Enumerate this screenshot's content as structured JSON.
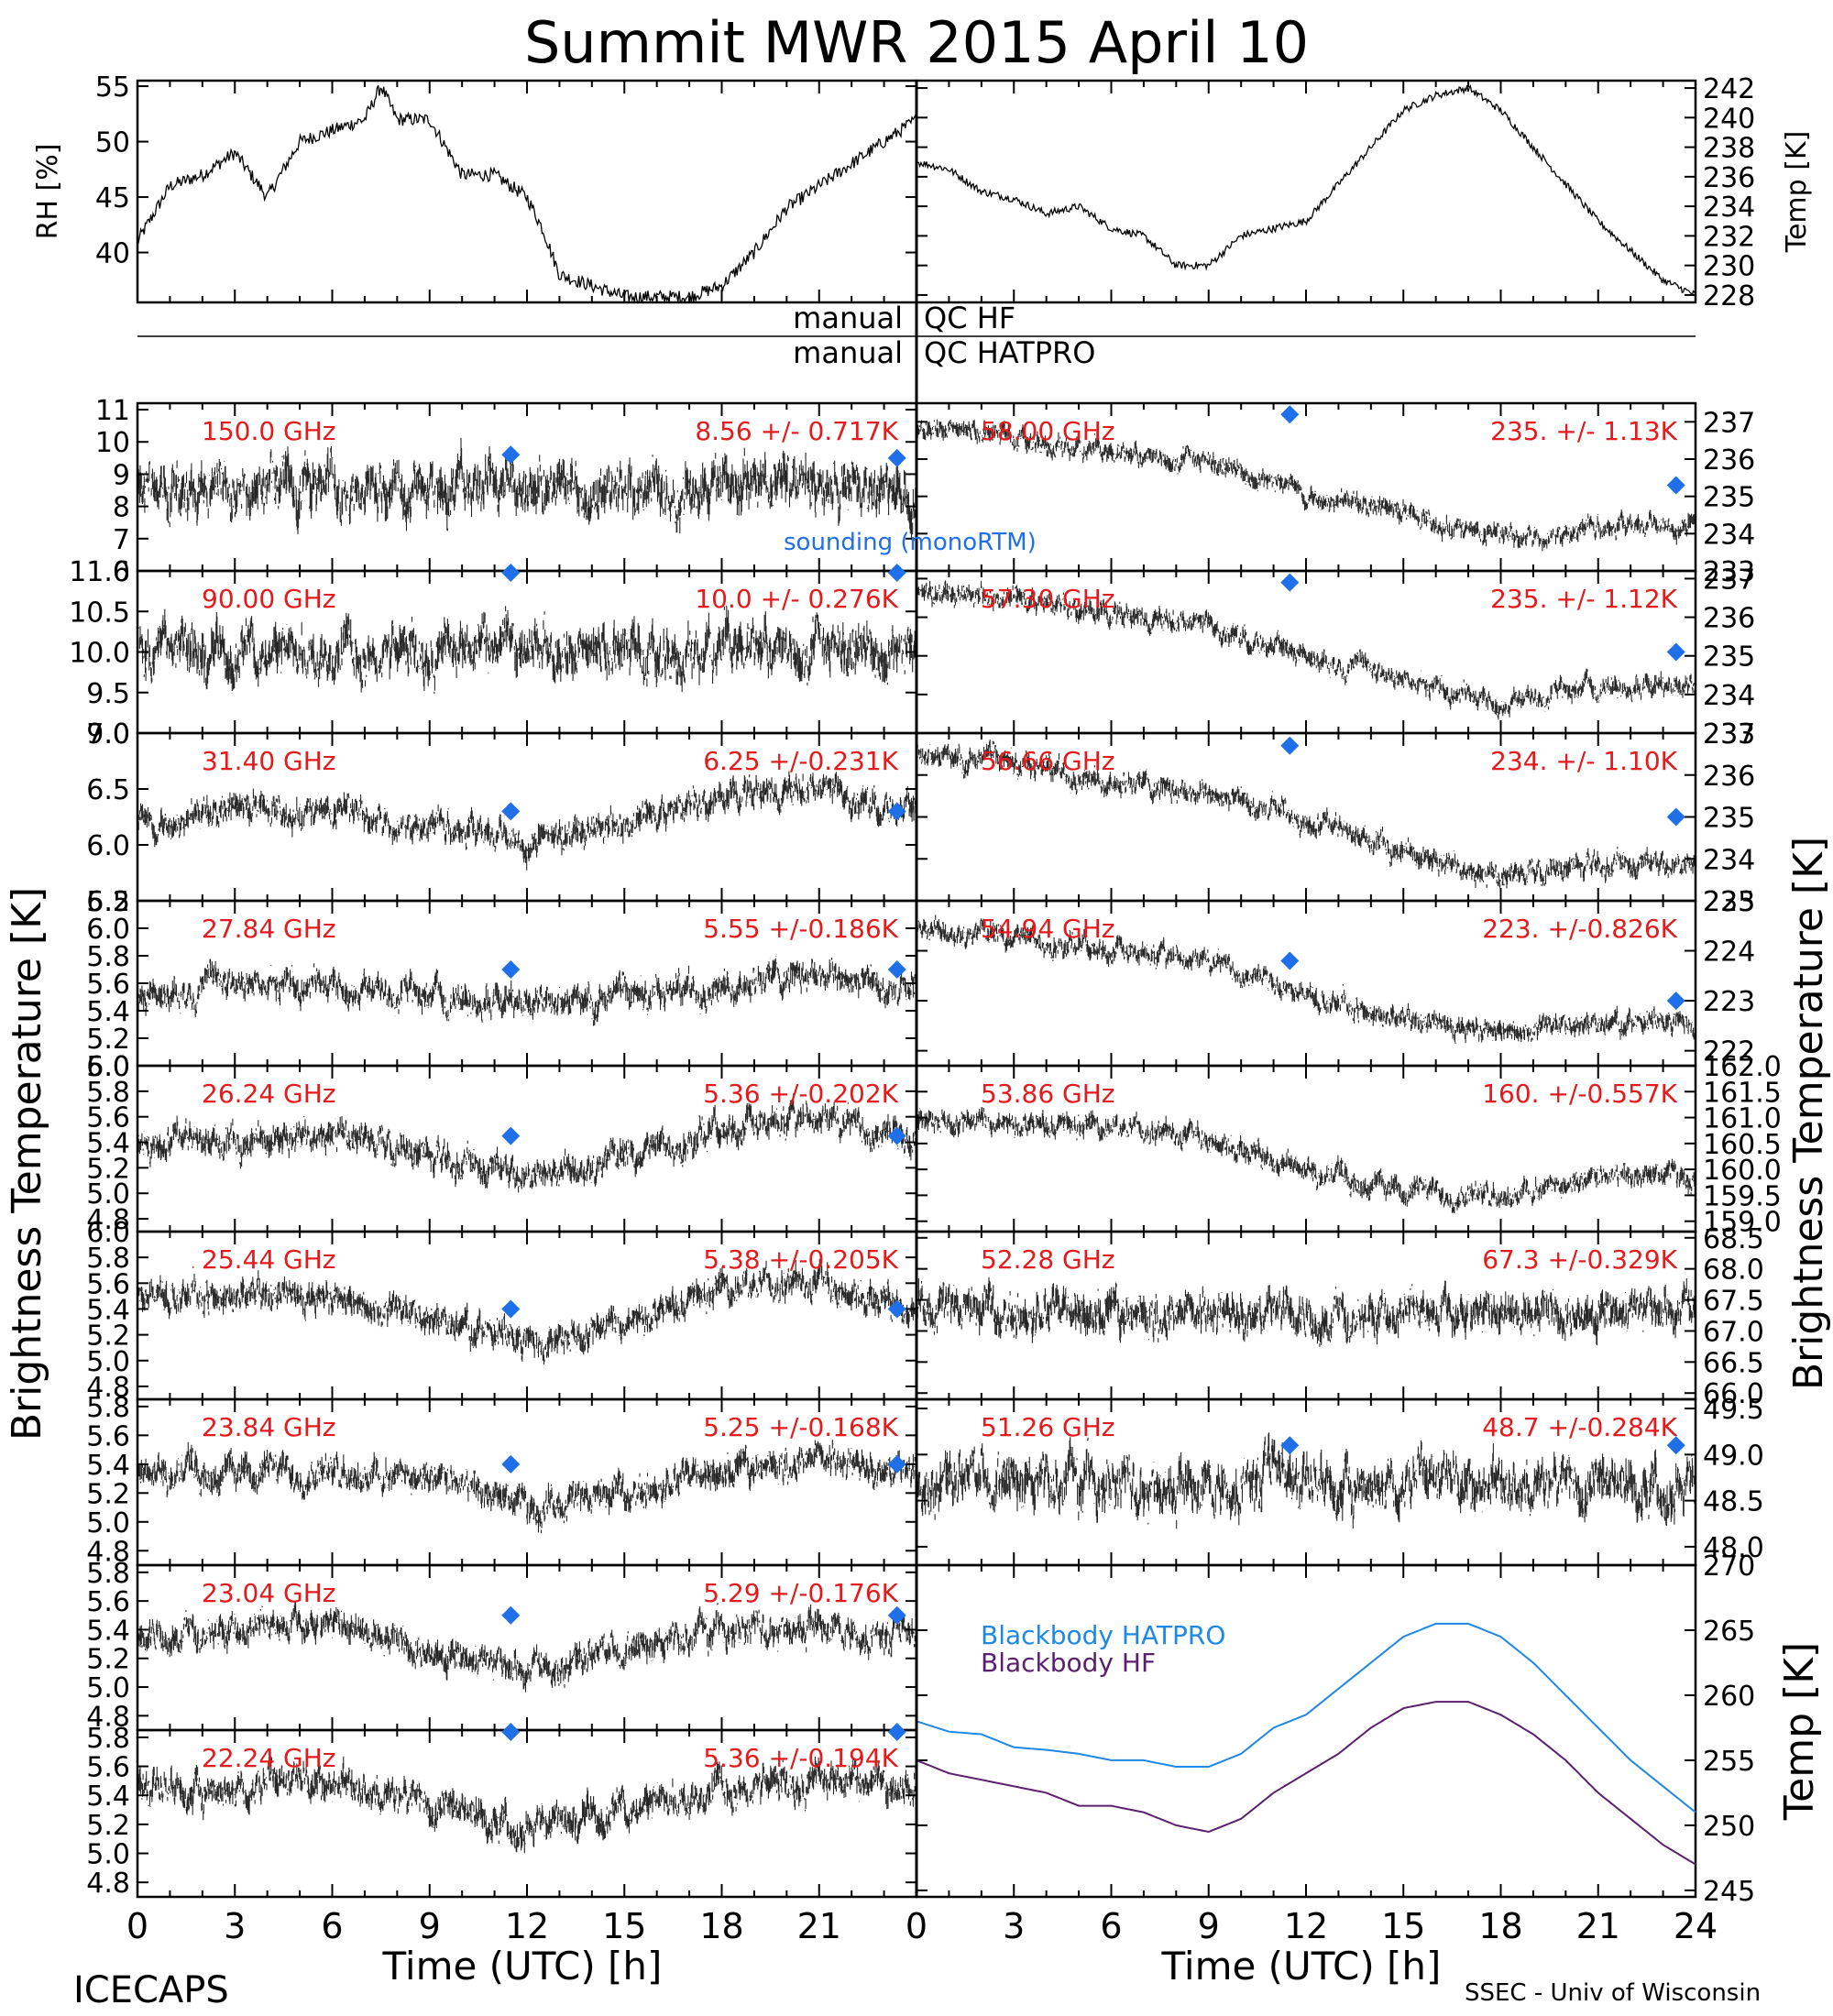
{
  "title": "Summit MWR 2015 April 10",
  "footer": {
    "left": "ICECAPS",
    "right": "SSEC - Univ of Wisconsin"
  },
  "ylabel_left": "Brightness Temperature [K]",
  "ylabel_right": "Brightness Temperature [K]",
  "xlabel": "Time (UTC) [h]",
  "x_ticks_left": [
    "0",
    "3",
    "6",
    "9",
    "12",
    "15",
    "18",
    "21"
  ],
  "x_ticks_right": [
    "0",
    "3",
    "6",
    "9",
    "12",
    "15",
    "18",
    "21",
    "24"
  ],
  "qc": {
    "row1_left": "manual",
    "row1_right": "QC HF",
    "row2_left": "manual",
    "row2_right": "QC HATPRO"
  },
  "colors": {
    "trace": "#000000",
    "label": "#e41a1c",
    "sounding": "#1e6fe8",
    "hatpro": "#1e88e5",
    "hf": "#5b1f6e"
  },
  "sounding_label": "sounding (monoRTM)",
  "chart_data": [
    {
      "type": "line",
      "panel": "rh",
      "ylabel": "RH [%]",
      "ylim": [
        35.5,
        55.5
      ],
      "yticks": [
        "40",
        "45",
        "50",
        "55"
      ],
      "x": [
        0,
        1,
        2,
        3,
        4,
        5,
        6,
        7,
        7.5,
        8,
        9,
        10,
        11,
        12,
        12.5,
        13,
        14,
        15,
        16,
        17,
        18,
        19,
        20,
        21,
        22,
        23,
        24
      ],
      "values": [
        41,
        46,
        47,
        49,
        45,
        50,
        51,
        52,
        55,
        52,
        52,
        47,
        47,
        45,
        42,
        38,
        37,
        36,
        36,
        36,
        37,
        40,
        44,
        46,
        48,
        50,
        52
      ]
    },
    {
      "type": "line",
      "panel": "temp",
      "ylabel": "Temp [K]",
      "ylim": [
        227.5,
        242.5
      ],
      "yticks": [
        "228",
        "230",
        "232",
        "234",
        "236",
        "238",
        "240",
        "242"
      ],
      "x": [
        0,
        1,
        2,
        3,
        4,
        5,
        6,
        7,
        8,
        9,
        10,
        11,
        12,
        13,
        14,
        15,
        16,
        17,
        18,
        19,
        20,
        21,
        22,
        23,
        24
      ],
      "values": [
        237,
        236.5,
        235,
        234.5,
        233.5,
        234,
        232.5,
        232,
        230,
        230,
        232,
        232.5,
        233,
        235.5,
        238,
        240.5,
        241.5,
        242,
        240.5,
        238,
        235.5,
        233,
        231,
        229,
        228
      ]
    },
    {
      "type": "scatter",
      "panel": "150.0",
      "channel": "150.0 GHz",
      "stat": "8.56 +/- 0.717K",
      "ylim": [
        6,
        11.2
      ],
      "yticks": [
        "6",
        "7",
        "8",
        "9",
        "10",
        "11"
      ],
      "x": [
        0,
        3,
        6,
        9,
        12,
        15,
        18,
        21,
        24
      ],
      "values": [
        8.6,
        8.6,
        8.5,
        8.6,
        8.5,
        8.5,
        8.6,
        8.6,
        8.5
      ],
      "noise": 0.72,
      "sounding": [
        [
          11.5,
          9.6
        ],
        [
          23.4,
          9.5
        ]
      ]
    },
    {
      "type": "scatter",
      "panel": "90.00",
      "channel": "90.00 GHz",
      "stat": "10.0 +/- 0.276K",
      "ylim": [
        9,
        11
      ],
      "yticks": [
        "9.0",
        "9.5",
        "10.0",
        "10.5",
        "11.0"
      ],
      "x": [
        0,
        3,
        6,
        9,
        12,
        15,
        18,
        21,
        24
      ],
      "values": [
        10,
        10,
        10,
        10,
        10,
        10,
        10,
        10,
        10
      ],
      "noise": 0.28,
      "sounding": [
        [
          11.5,
          11
        ],
        [
          23.4,
          11
        ]
      ]
    },
    {
      "type": "scatter",
      "panel": "31.40",
      "channel": "31.40 GHz",
      "stat": "6.25 +/-0.231K",
      "ylim": [
        5.5,
        7
      ],
      "yticks": [
        "5.5",
        "6.0",
        "6.5",
        "7.0"
      ],
      "x": [
        0,
        3,
        6,
        9,
        12,
        15,
        18,
        21,
        24
      ],
      "values": [
        6.2,
        6.3,
        6.3,
        6.2,
        6.05,
        6.2,
        6.4,
        6.5,
        6.3
      ],
      "noise": 0.12,
      "sounding": [
        [
          11.5,
          6.3
        ],
        [
          23.4,
          6.3
        ]
      ]
    },
    {
      "type": "scatter",
      "panel": "27.84",
      "channel": "27.84 GHz",
      "stat": "5.55 +/-0.186K",
      "ylim": [
        5.0,
        6.2
      ],
      "yticks": [
        "5.0",
        "5.2",
        "5.4",
        "5.6",
        "5.8",
        "6.0",
        "6.2"
      ],
      "x": [
        0,
        3,
        6,
        9,
        12,
        15,
        18,
        21,
        24
      ],
      "values": [
        5.5,
        5.6,
        5.6,
        5.5,
        5.45,
        5.5,
        5.6,
        5.7,
        5.5
      ],
      "noise": 0.1,
      "sounding": [
        [
          11.5,
          5.7
        ],
        [
          23.4,
          5.7
        ]
      ]
    },
    {
      "type": "scatter",
      "panel": "26.24",
      "channel": "26.24 GHz",
      "stat": "5.36 +/-0.202K",
      "ylim": [
        4.7,
        6
      ],
      "yticks": [
        "4.8",
        "5.0",
        "5.2",
        "5.4",
        "5.6",
        "5.8",
        "6.0"
      ],
      "x": [
        0,
        3,
        6,
        9,
        12,
        15,
        18,
        21,
        24
      ],
      "values": [
        5.4,
        5.4,
        5.5,
        5.3,
        5.15,
        5.3,
        5.5,
        5.6,
        5.4
      ],
      "noise": 0.11,
      "sounding": [
        [
          11.5,
          5.45
        ],
        [
          23.4,
          5.45
        ]
      ]
    },
    {
      "type": "scatter",
      "panel": "25.44",
      "channel": "25.44 GHz",
      "stat": "5.38 +/-0.205K",
      "ylim": [
        4.7,
        6
      ],
      "yticks": [
        "4.8",
        "5.0",
        "5.2",
        "5.4",
        "5.6",
        "5.8",
        "6.0"
      ],
      "x": [
        0,
        3,
        6,
        9,
        12,
        15,
        18,
        21,
        24
      ],
      "values": [
        5.5,
        5.5,
        5.5,
        5.3,
        5.15,
        5.3,
        5.55,
        5.6,
        5.4
      ],
      "noise": 0.11,
      "sounding": [
        [
          11.5,
          5.4
        ],
        [
          23.4,
          5.4
        ]
      ]
    },
    {
      "type": "scatter",
      "panel": "23.84",
      "channel": "23.84 GHz",
      "stat": "5.25 +/-0.168K",
      "ylim": [
        4.7,
        5.85
      ],
      "yticks": [
        "4.8",
        "5.0",
        "5.2",
        "5.4",
        "5.6",
        "5.8"
      ],
      "x": [
        0,
        3,
        6,
        9,
        12,
        15,
        18,
        21,
        24
      ],
      "values": [
        5.35,
        5.35,
        5.35,
        5.3,
        5.1,
        5.2,
        5.35,
        5.45,
        5.3
      ],
      "noise": 0.1,
      "sounding": [
        [
          11.5,
          5.4
        ],
        [
          23.4,
          5.4
        ]
      ]
    },
    {
      "type": "scatter",
      "panel": "23.04",
      "channel": "23.04 GHz",
      "stat": "5.29 +/-0.176K",
      "ylim": [
        4.7,
        5.85
      ],
      "yticks": [
        "4.8",
        "5.0",
        "5.2",
        "5.4",
        "5.6",
        "5.8"
      ],
      "x": [
        0,
        3,
        6,
        9,
        12,
        15,
        18,
        21,
        24
      ],
      "values": [
        5.35,
        5.4,
        5.45,
        5.25,
        5.1,
        5.25,
        5.4,
        5.45,
        5.3
      ],
      "noise": 0.1,
      "sounding": [
        [
          11.5,
          5.5
        ],
        [
          23.4,
          5.5
        ]
      ]
    },
    {
      "type": "scatter",
      "panel": "22.24",
      "channel": "22.24 GHz",
      "stat": "5.36 +/-0.194K",
      "ylim": [
        4.7,
        5.85
      ],
      "yticks": [
        "4.8",
        "5.0",
        "5.2",
        "5.4",
        "5.6",
        "5.8"
      ],
      "x": [
        0,
        3,
        6,
        9,
        12,
        15,
        18,
        21,
        24
      ],
      "values": [
        5.45,
        5.45,
        5.5,
        5.35,
        5.2,
        5.3,
        5.45,
        5.5,
        5.4
      ],
      "noise": 0.11,
      "sounding": [
        [
          11.5,
          5.85
        ],
        [
          23.4,
          5.85
        ]
      ]
    },
    {
      "type": "scatter",
      "panel": "58.00",
      "channel": "58.00 GHz",
      "stat": "235. +/- 1.13K",
      "ylim": [
        233,
        237.5
      ],
      "yticks": [
        "233",
        "234",
        "235",
        "236",
        "237"
      ],
      "x": [
        0,
        3,
        6,
        9,
        12,
        15,
        18,
        21,
        24
      ],
      "values": [
        236.9,
        236.6,
        236.1,
        235.9,
        235.1,
        234.5,
        233.9,
        234.2,
        234.3
      ],
      "noise": 0.25,
      "sounding": [
        [
          11.5,
          237.2
        ],
        [
          23.4,
          235.3
        ]
      ]
    },
    {
      "type": "scatter",
      "panel": "57.30",
      "channel": "57.30 GHz",
      "stat": "235. +/- 1.12K",
      "ylim": [
        233,
        237.2
      ],
      "yticks": [
        "233",
        "234",
        "235",
        "236",
        "237"
      ],
      "x": [
        0,
        3,
        6,
        9,
        12,
        15,
        18,
        21,
        24
      ],
      "values": [
        236.7,
        236.5,
        236,
        235.8,
        235,
        234.4,
        233.8,
        234.2,
        234.2
      ],
      "noise": 0.25,
      "sounding": [
        [
          11.5,
          236.9
        ],
        [
          23.4,
          235.1
        ]
      ]
    },
    {
      "type": "scatter",
      "panel": "56.66",
      "channel": "56.66 GHz",
      "stat": "234. +/- 1.10K",
      "ylim": [
        233,
        237
      ],
      "yticks": [
        "233",
        "234",
        "235",
        "236",
        "237"
      ],
      "x": [
        0,
        3,
        6,
        9,
        12,
        15,
        18,
        21,
        24
      ],
      "values": [
        236.5,
        236.3,
        235.9,
        235.6,
        234.9,
        234.2,
        233.6,
        233.9,
        233.9
      ],
      "noise": 0.25,
      "sounding": [
        [
          11.5,
          236.7
        ],
        [
          23.4,
          235
        ]
      ]
    },
    {
      "type": "scatter",
      "panel": "54.94",
      "channel": "54.94 GHz",
      "stat": "223. +/-0.826K",
      "ylim": [
        221.7,
        225
      ],
      "yticks": [
        "222",
        "223",
        "224",
        "225"
      ],
      "x": [
        0,
        3,
        6,
        9,
        12,
        15,
        18,
        21,
        24
      ],
      "values": [
        224.5,
        224.3,
        224,
        223.8,
        223.1,
        222.6,
        222.4,
        222.5,
        222.6
      ],
      "noise": 0.2,
      "sounding": [
        [
          11.5,
          223.8
        ],
        [
          23.4,
          223
        ]
      ]
    },
    {
      "type": "scatter",
      "panel": "53.86",
      "channel": "53.86 GHz",
      "stat": "160. +/-0.557K",
      "ylim": [
        158.8,
        162
      ],
      "yticks": [
        "159.0",
        "159.5",
        "160.0",
        "160.5",
        "161.0",
        "161.5",
        "162.0"
      ],
      "x": [
        0,
        3,
        6,
        9,
        12,
        15,
        18,
        21,
        24
      ],
      "values": [
        161,
        160.9,
        160.8,
        160.6,
        160,
        159.6,
        159.5,
        159.8,
        159.9
      ],
      "noise": 0.2,
      "sounding": []
    },
    {
      "type": "scatter",
      "panel": "52.28",
      "channel": "52.28 GHz",
      "stat": "67.3 +/-0.329K",
      "ylim": [
        65.9,
        68.6
      ],
      "yticks": [
        "66.0",
        "66.5",
        "67.0",
        "67.5",
        "68.0",
        "68.5"
      ],
      "x": [
        0,
        3,
        6,
        9,
        12,
        15,
        18,
        21,
        24
      ],
      "values": [
        67.4,
        67.3,
        67.3,
        67.3,
        67.2,
        67.3,
        67.3,
        67.3,
        67.3
      ],
      "noise": 0.3,
      "sounding": []
    },
    {
      "type": "scatter",
      "panel": "51.26",
      "channel": "51.26 GHz",
      "stat": "48.7 +/-0.284K",
      "ylim": [
        47.8,
        49.6
      ],
      "yticks": [
        "48.0",
        "48.5",
        "49.0",
        "49.5"
      ],
      "x": [
        0,
        3,
        6,
        9,
        12,
        15,
        18,
        21,
        24
      ],
      "values": [
        48.7,
        48.7,
        48.7,
        48.7,
        48.7,
        48.7,
        48.7,
        48.7,
        48.7
      ],
      "noise": 0.25,
      "sounding": [
        [
          11.5,
          49.1
        ],
        [
          23.4,
          49.1
        ]
      ]
    },
    {
      "type": "line",
      "panel": "blackbody",
      "ylabel": "Temp [K]",
      "ylim": [
        244.5,
        270
      ],
      "yticks": [
        "245",
        "250",
        "255",
        "260",
        "265",
        "270"
      ],
      "series": [
        {
          "name": "Blackbody HATPRO",
          "x": [
            0,
            1,
            2,
            3,
            4,
            5,
            6,
            7,
            8,
            9,
            10,
            11,
            12,
            13,
            14,
            15,
            16,
            17,
            18,
            19,
            20,
            21,
            22,
            23,
            24
          ],
          "values": [
            258,
            257.2,
            257,
            256,
            255.8,
            255.5,
            255,
            255,
            254.5,
            254.5,
            255.5,
            257.5,
            258.5,
            260.5,
            262.5,
            264.5,
            265.5,
            265.5,
            264.5,
            262.5,
            260,
            257.5,
            255,
            253,
            251
          ]
        },
        {
          "name": "Blackbody HF",
          "x": [
            0,
            1,
            2,
            3,
            4,
            5,
            6,
            7,
            8,
            9,
            10,
            11,
            12,
            13,
            14,
            15,
            16,
            17,
            18,
            19,
            20,
            21,
            22,
            23,
            24
          ],
          "values": [
            255,
            254,
            253.5,
            253,
            252.5,
            251.5,
            251.5,
            251,
            250,
            249.5,
            250.5,
            252.5,
            254,
            255.5,
            257.5,
            259,
            259.5,
            259.5,
            258.5,
            257,
            255,
            252.5,
            250.5,
            248.5,
            247
          ]
        }
      ]
    }
  ]
}
